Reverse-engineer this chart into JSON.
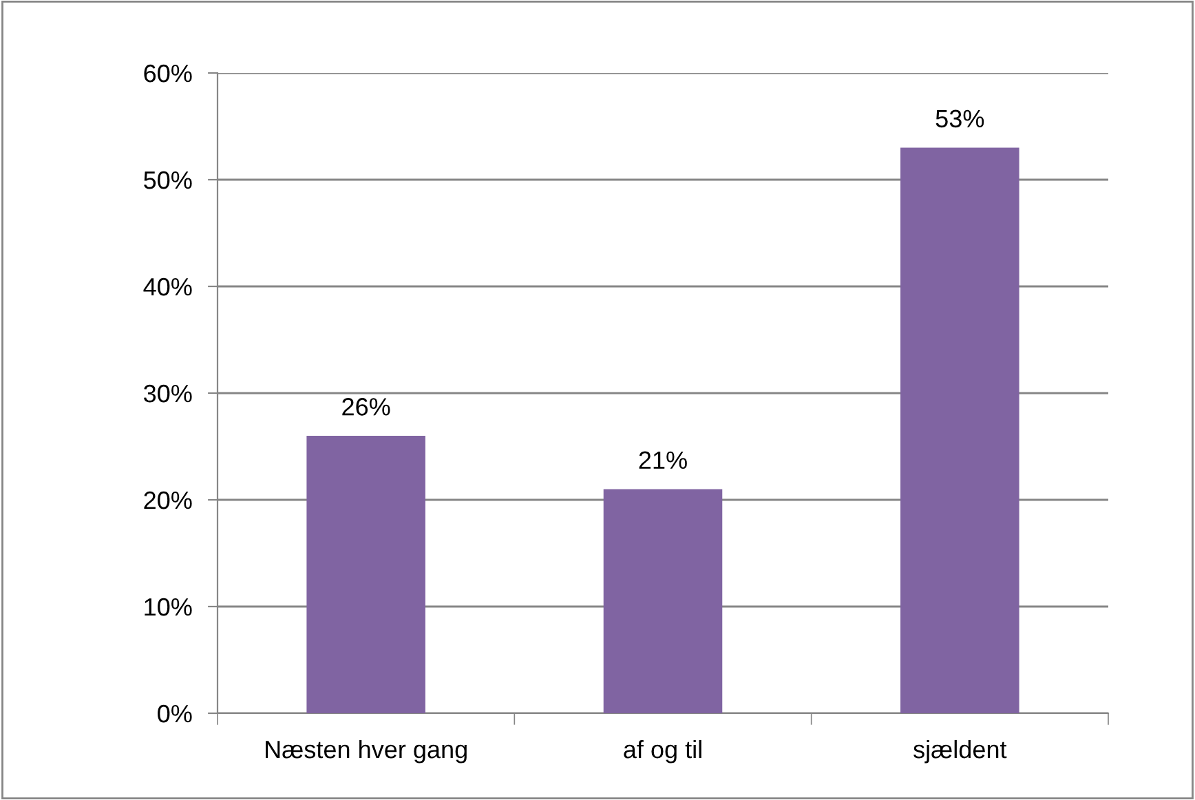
{
  "chart_data": {
    "type": "bar",
    "categories": [
      "Næsten hver gang",
      "af og til",
      "sjældent"
    ],
    "values": [
      26,
      21,
      53
    ],
    "color": "#8064a2",
    "value_labels": [
      "26%",
      "21%",
      "53%"
    ],
    "ylim": [
      0,
      60
    ],
    "yticks": [
      {
        "value": 0,
        "label": "0%"
      },
      {
        "value": 10,
        "label": "10%"
      },
      {
        "value": 20,
        "label": "20%"
      },
      {
        "value": 30,
        "label": "30%"
      },
      {
        "value": 40,
        "label": "40%"
      },
      {
        "value": 50,
        "label": "50%"
      },
      {
        "value": 60,
        "label": "60%"
      }
    ],
    "grid": "y",
    "legend": false
  }
}
